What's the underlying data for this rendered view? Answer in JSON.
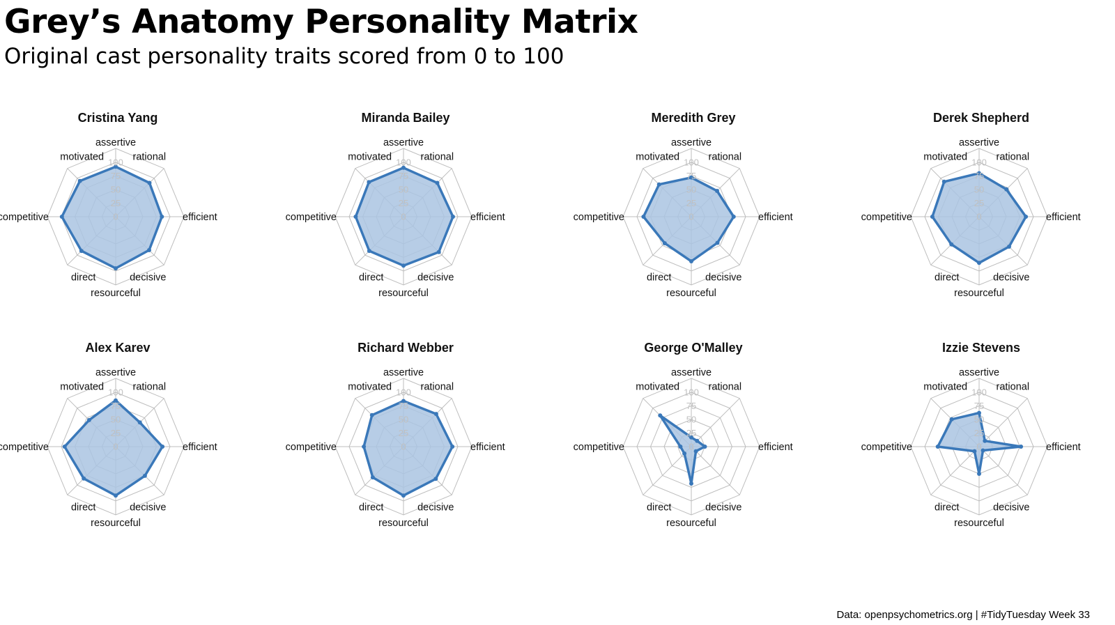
{
  "title": "Grey’s Anatomy Personality Matrix",
  "subtitle": "Original cast personality traits scored from 0 to 100",
  "caption": "Data: openpsychometrics.org | #TidyTuesday Week 33",
  "colors": {
    "line": "#3a78b9",
    "fill": "#aac4e2",
    "grid": "#bdbdbd",
    "tick": "#c0c0c0"
  },
  "chart_data": {
    "type": "radar",
    "axes": [
      "assertive",
      "rational",
      "efficient",
      "decisive",
      "resourceful",
      "direct",
      "competitive",
      "motivated"
    ],
    "ticks": [
      0,
      25,
      50,
      75,
      100
    ],
    "rlim": [
      0,
      100
    ],
    "grid": true,
    "panels": [
      {
        "name": "Cristina Yang",
        "values": [
          92,
          88,
          85,
          87,
          95,
          89,
          99,
          93
        ]
      },
      {
        "name": "Miranda Bailey",
        "values": [
          90,
          88,
          91,
          92,
          90,
          89,
          88,
          90
        ]
      },
      {
        "name": "Meredith Grey",
        "values": [
          72,
          67,
          78,
          68,
          82,
          69,
          88,
          84
        ]
      },
      {
        "name": "Derek Shepherd",
        "values": [
          80,
          71,
          86,
          78,
          85,
          72,
          86,
          91
        ]
      },
      {
        "name": "Alex Karev",
        "values": [
          85,
          63,
          86,
          76,
          90,
          83,
          94,
          69
        ]
      },
      {
        "name": "Richard Webber",
        "values": [
          84,
          85,
          90,
          84,
          90,
          80,
          73,
          82
        ]
      },
      {
        "name": "George O'Malley",
        "values": [
          17,
          15,
          25,
          12,
          68,
          18,
          20,
          81
        ]
      },
      {
        "name": "Izzie Stevens",
        "values": [
          62,
          15,
          77,
          10,
          50,
          12,
          76,
          71
        ]
      }
    ]
  }
}
